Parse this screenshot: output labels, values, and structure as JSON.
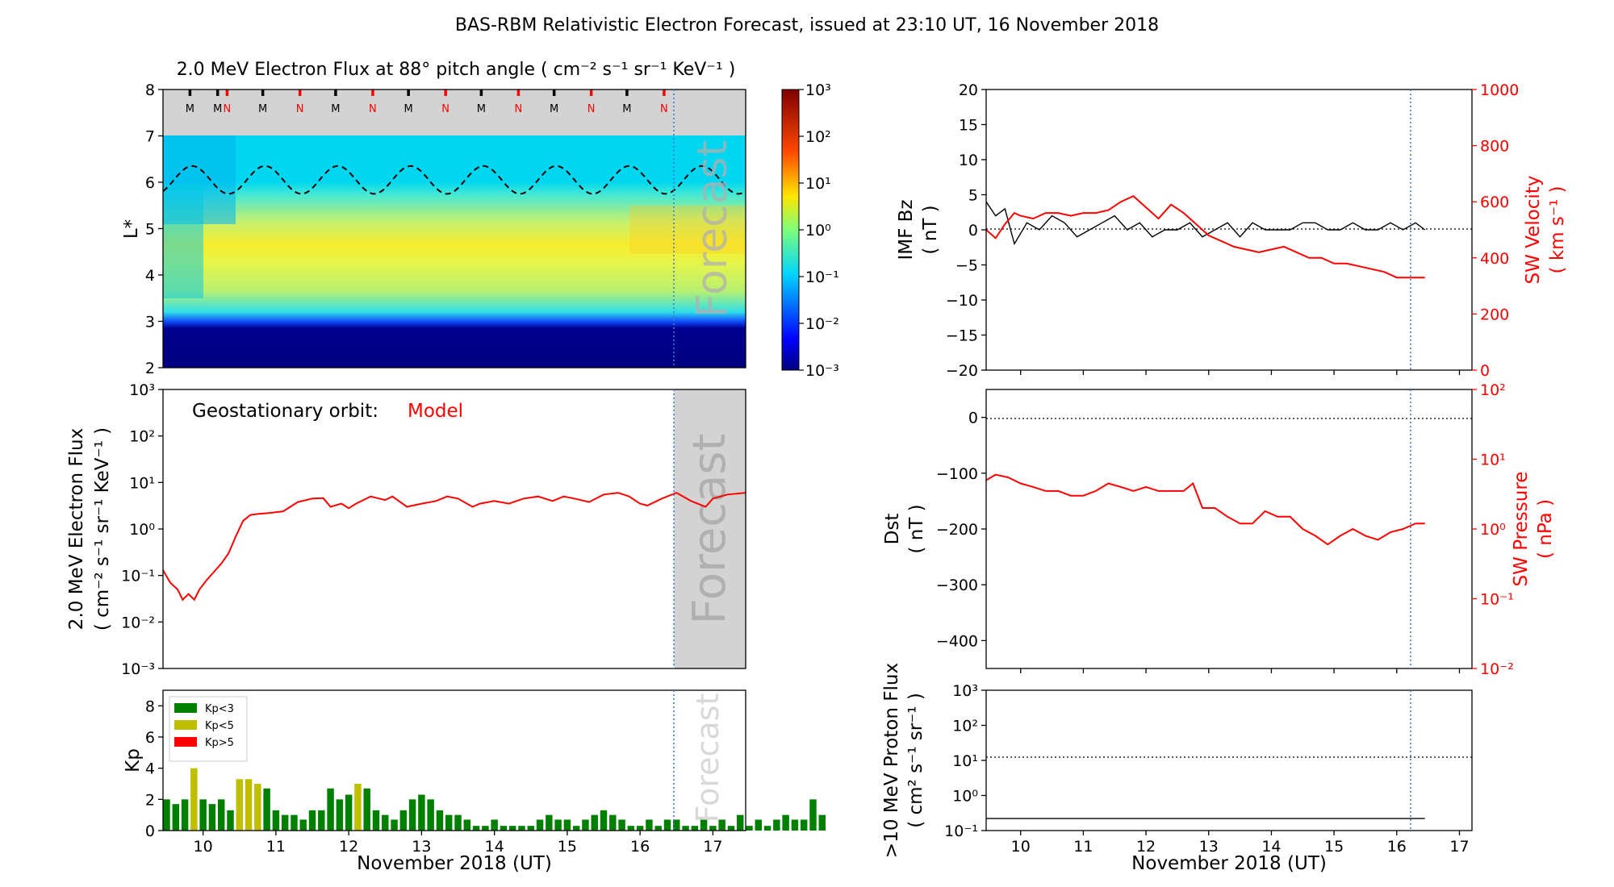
{
  "page": {
    "title": "BAS-RBM Relativistic Electron Forecast, issued at 23:10 UT, 16 November 2018",
    "forecast_label": "Forecast"
  },
  "chart_data": [
    {
      "id": "flux_map",
      "type": "heatmap",
      "title": "2.0 MeV Electron Flux at 88° pitch angle ( cm⁻² s⁻¹ sr⁻¹ KeV⁻¹ )",
      "ylabel": "L*",
      "xlim": [
        9.45,
        17.45
      ],
      "ylim": [
        2,
        8
      ],
      "yticks": [
        2,
        3,
        4,
        5,
        6,
        7,
        8
      ],
      "forecast_start": 16.47,
      "colorbar": {
        "scale": "log",
        "range": [
          0.001,
          1000
        ],
        "ticks": [
          "10⁻³",
          "10⁻²",
          "10⁻¹",
          "10⁰",
          "10¹",
          "10²",
          "10³"
        ]
      },
      "magnetopause_dashed_L": {
        "mean": 6.05,
        "amplitude": 0.3,
        "period_days": 1
      },
      "satellite_markers": [
        {
          "t": 9.82,
          "label": "M",
          "color": "#000000"
        },
        {
          "t": 10.2,
          "label": "M",
          "color": "#000000"
        },
        {
          "t": 10.33,
          "label": "N",
          "color": "#ff0000"
        },
        {
          "t": 10.82,
          "label": "M",
          "color": "#000000"
        },
        {
          "t": 11.33,
          "label": "N",
          "color": "#ff0000"
        },
        {
          "t": 11.82,
          "label": "M",
          "color": "#000000"
        },
        {
          "t": 12.33,
          "label": "N",
          "color": "#ff0000"
        },
        {
          "t": 12.82,
          "label": "M",
          "color": "#000000"
        },
        {
          "t": 13.33,
          "label": "N",
          "color": "#ff0000"
        },
        {
          "t": 13.82,
          "label": "M",
          "color": "#000000"
        },
        {
          "t": 14.33,
          "label": "N",
          "color": "#ff0000"
        },
        {
          "t": 14.82,
          "label": "M",
          "color": "#000000"
        },
        {
          "t": 15.33,
          "label": "N",
          "color": "#ff0000"
        },
        {
          "t": 15.82,
          "label": "M",
          "color": "#000000"
        },
        {
          "t": 16.33,
          "label": "N",
          "color": "#ff0000"
        }
      ]
    },
    {
      "id": "geo_flux",
      "type": "line",
      "ylabel": "2.0 MeV Electron Flux",
      "yunits": "( cm⁻² s⁻¹ sr⁻¹ KeV⁻¹ )",
      "annotation": "Geostationary orbit:",
      "annotation_series": "Model",
      "yscale": "log",
      "ylim": [
        0.001,
        1000
      ],
      "yticks": [
        "10⁻³",
        "10⁻²",
        "10⁻¹",
        "10⁰",
        "10¹",
        "10²",
        "10³"
      ],
      "series": [
        {
          "color": "#ff0000",
          "x": [
            9.45,
            9.55,
            9.65,
            9.72,
            9.8,
            9.88,
            9.95,
            10.05,
            10.15,
            10.25,
            10.35,
            10.45,
            10.55,
            10.65,
            10.75,
            10.9,
            11.1,
            11.3,
            11.5,
            11.65,
            11.75,
            11.9,
            12.0,
            12.1,
            12.3,
            12.5,
            12.6,
            12.8,
            13.0,
            13.2,
            13.35,
            13.5,
            13.7,
            13.8,
            14.0,
            14.2,
            14.4,
            14.6,
            14.8,
            14.95,
            15.1,
            15.3,
            15.5,
            15.7,
            15.85,
            16.0,
            16.1,
            16.3,
            16.5,
            16.7,
            16.9,
            17.0,
            17.2,
            17.45
          ],
          "y": [
            0.13,
            0.07,
            0.05,
            0.03,
            0.04,
            0.03,
            0.05,
            0.08,
            0.12,
            0.18,
            0.3,
            0.7,
            1.5,
            2.0,
            2.1,
            2.2,
            2.4,
            3.8,
            4.5,
            4.6,
            3.0,
            3.5,
            2.8,
            3.5,
            5.0,
            4.2,
            5.0,
            3.0,
            3.5,
            4.0,
            5.0,
            4.5,
            3.0,
            3.5,
            4.0,
            3.5,
            4.5,
            5.0,
            4.0,
            5.0,
            4.5,
            3.8,
            5.5,
            6.0,
            5.0,
            3.5,
            3.2,
            4.5,
            6.0,
            4.0,
            3.0,
            4.5,
            5.5,
            6.0
          ]
        }
      ]
    },
    {
      "id": "kp",
      "type": "bar",
      "ylabel": "Kp",
      "ylim": [
        0,
        9
      ],
      "yticks": [
        0,
        2,
        4,
        6,
        8
      ],
      "xlabel": "November 2018 (UT)",
      "xticks": [
        "10",
        "11",
        "12",
        "13",
        "14",
        "15",
        "16",
        "17"
      ],
      "legend": [
        {
          "label": "Kp<3",
          "color": "#008000"
        },
        {
          "label": "Kp<5",
          "color": "#bfbf00"
        },
        {
          "label": "Kp>5",
          "color": "#ff0000"
        }
      ],
      "bin_days": 0.125,
      "x_start": 9.5,
      "values": [
        2.0,
        1.7,
        2.0,
        4.0,
        2.0,
        1.7,
        2.0,
        1.3,
        3.3,
        3.3,
        3.0,
        2.7,
        1.3,
        1.0,
        1.0,
        0.7,
        1.3,
        1.3,
        2.7,
        2.0,
        2.3,
        3.0,
        2.7,
        1.3,
        1.0,
        0.7,
        1.3,
        2.0,
        2.3,
        2.0,
        1.3,
        1.0,
        1.0,
        0.7,
        0.3,
        0.3,
        0.7,
        0.3,
        0.3,
        0.3,
        0.3,
        0.7,
        1.0,
        0.7,
        0.7,
        0.3,
        0.7,
        1.0,
        1.3,
        1.0,
        0.7,
        0.3,
        0.3,
        0.7,
        0.3,
        0.7,
        0.7,
        0.3,
        0.3,
        0.7,
        0.3,
        0.7,
        0.3,
        1.0,
        0.3,
        0.7,
        0.3,
        0.7,
        1.0,
        0.7,
        0.7,
        2.0,
        1.0
      ]
    },
    {
      "id": "imf_sw",
      "type": "line",
      "ylabel": "IMF Bz",
      "yunits": "( nT )",
      "ylim": [
        -20,
        20
      ],
      "yticks": [
        -20,
        -15,
        -10,
        -5,
        0,
        5,
        10,
        15,
        20
      ],
      "y2label": "SW Velocity",
      "y2units": "( km s⁻¹ )",
      "y2lim": [
        0,
        1000
      ],
      "y2ticks": [
        0,
        200,
        400,
        600,
        800,
        1000
      ],
      "series": [
        {
          "color": "#000000",
          "x": [
            9.45,
            9.6,
            9.75,
            9.9,
            10.1,
            10.3,
            10.5,
            10.7,
            10.9,
            11.1,
            11.3,
            11.5,
            11.7,
            11.9,
            12.1,
            12.3,
            12.5,
            12.7,
            12.9,
            13.1,
            13.3,
            13.5,
            13.7,
            13.9,
            14.1,
            14.3,
            14.5,
            14.7,
            14.9,
            15.1,
            15.3,
            15.5,
            15.7,
            15.9,
            16.1,
            16.3,
            16.45
          ],
          "y": [
            4,
            2,
            3,
            -2,
            1,
            0,
            2,
            1,
            -1,
            0,
            1,
            2,
            0,
            1,
            -1,
            0,
            0,
            1,
            -1,
            0,
            1,
            -1,
            1,
            0,
            0,
            0,
            1,
            1,
            0,
            0,
            1,
            0,
            0,
            1,
            0,
            1,
            0
          ]
        },
        {
          "color": "#ff0000",
          "x": [
            9.45,
            9.6,
            9.75,
            9.9,
            10.0,
            10.2,
            10.4,
            10.6,
            10.8,
            11.0,
            11.2,
            11.4,
            11.6,
            11.8,
            12.0,
            12.2,
            12.4,
            12.6,
            12.8,
            13.0,
            13.2,
            13.4,
            13.6,
            13.8,
            14.0,
            14.2,
            14.4,
            14.6,
            14.8,
            15.0,
            15.2,
            15.4,
            15.6,
            15.8,
            16.0,
            16.2,
            16.45
          ],
          "y": [
            500,
            470,
            520,
            560,
            550,
            540,
            560,
            560,
            550,
            560,
            560,
            570,
            600,
            620,
            580,
            540,
            590,
            560,
            520,
            480,
            460,
            440,
            430,
            420,
            430,
            440,
            420,
            400,
            400,
            380,
            380,
            370,
            360,
            350,
            330,
            330,
            330
          ]
        }
      ],
      "forecast_start": 16.47
    },
    {
      "id": "dst_pressure",
      "type": "line",
      "ylabel": "Dst",
      "yunits": "( nT )",
      "ylim": [
        -450,
        50
      ],
      "yticks": [
        -400,
        -300,
        -200,
        -100,
        0
      ],
      "y2label": "SW Pressure",
      "y2units": "( nPa )",
      "y2scale": "log",
      "y2lim": [
        0.01,
        100
      ],
      "y2ticks": [
        "10⁻²",
        "10⁻¹",
        "10⁰",
        "10¹",
        "10²"
      ],
      "series": [
        {
          "color": "#ff0000",
          "axis": "y2",
          "x": [
            9.45,
            9.6,
            9.8,
            10.0,
            10.2,
            10.4,
            10.6,
            10.8,
            11.0,
            11.2,
            11.4,
            11.6,
            11.8,
            12.0,
            12.2,
            12.4,
            12.6,
            12.75,
            12.9,
            13.1,
            13.3,
            13.5,
            13.7,
            13.9,
            14.1,
            14.3,
            14.5,
            14.7,
            14.9,
            15.1,
            15.3,
            15.5,
            15.7,
            15.9,
            16.1,
            16.3,
            16.45
          ],
          "y": [
            5.0,
            6.0,
            5.5,
            4.5,
            4.0,
            3.5,
            3.5,
            3.0,
            3.0,
            3.5,
            4.5,
            4.0,
            3.5,
            4.0,
            3.5,
            3.5,
            3.5,
            4.5,
            2.0,
            2.0,
            1.5,
            1.2,
            1.2,
            1.8,
            1.5,
            1.5,
            1.0,
            0.8,
            0.6,
            0.8,
            1.0,
            0.8,
            0.7,
            0.9,
            1.0,
            1.2,
            1.2
          ]
        }
      ],
      "forecast_start": 16.47
    },
    {
      "id": "proton_flux",
      "type": "line",
      "ylabel": ">10 MeV Proton Flux",
      "yunits": "( cm² s⁻¹ sr⁻¹ )",
      "yscale": "log",
      "ylim": [
        0.1,
        1000
      ],
      "yticks": [
        "10⁻¹",
        "10⁰",
        "10¹",
        "10²",
        "10³"
      ],
      "threshold": 10,
      "xlabel": "November 2018 (UT)",
      "xticks": [
        "10",
        "11",
        "12",
        "13",
        "14",
        "15",
        "16",
        "17"
      ],
      "series": [
        {
          "color": "#000000",
          "x": [
            9.45,
            16.45
          ],
          "y": [
            0.22,
            0.22
          ]
        }
      ],
      "forecast_start": 16.47
    }
  ]
}
